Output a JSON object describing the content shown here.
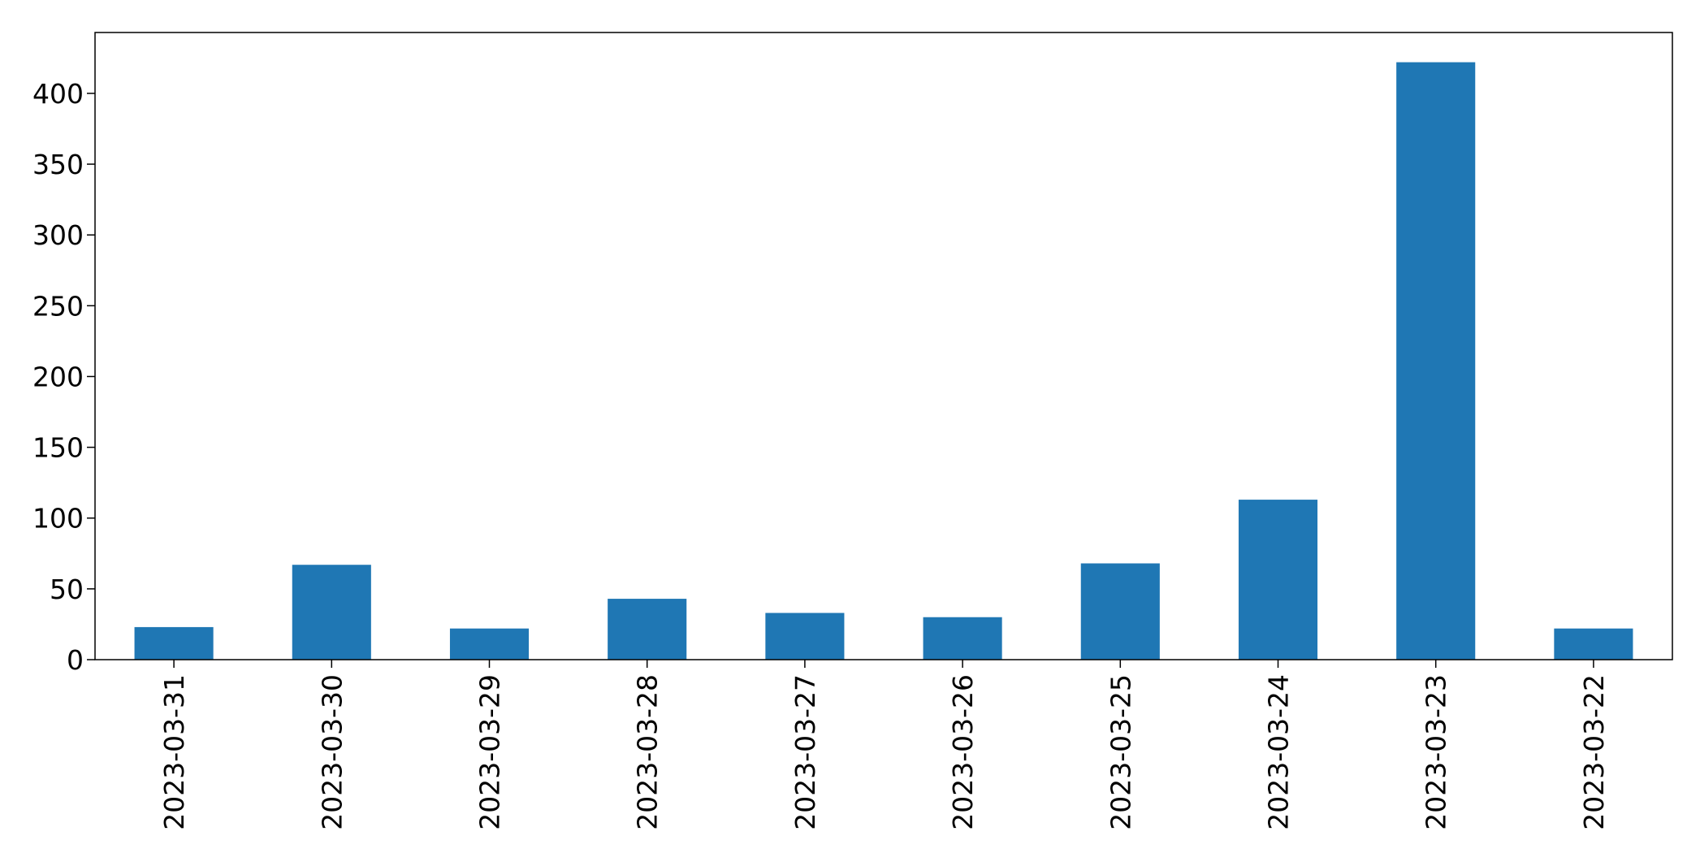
{
  "chart_data": {
    "type": "bar",
    "title": "",
    "xlabel": "",
    "ylabel": "",
    "categories": [
      "2023-03-31",
      "2023-03-30",
      "2023-03-29",
      "2023-03-28",
      "2023-03-27",
      "2023-03-26",
      "2023-03-25",
      "2023-03-24",
      "2023-03-23",
      "2023-03-22"
    ],
    "values": [
      23,
      67,
      22,
      43,
      33,
      30,
      68,
      113,
      422,
      22
    ],
    "ylim": [
      0,
      443
    ],
    "yticks": [
      0,
      50,
      100,
      150,
      200,
      250,
      300,
      350,
      400
    ],
    "ytick_labels": [
      "0",
      "50",
      "100",
      "150",
      "200",
      "250",
      "300",
      "350",
      "400"
    ],
    "bar_color": "#1f77b4",
    "grid": false,
    "legend": "none"
  }
}
